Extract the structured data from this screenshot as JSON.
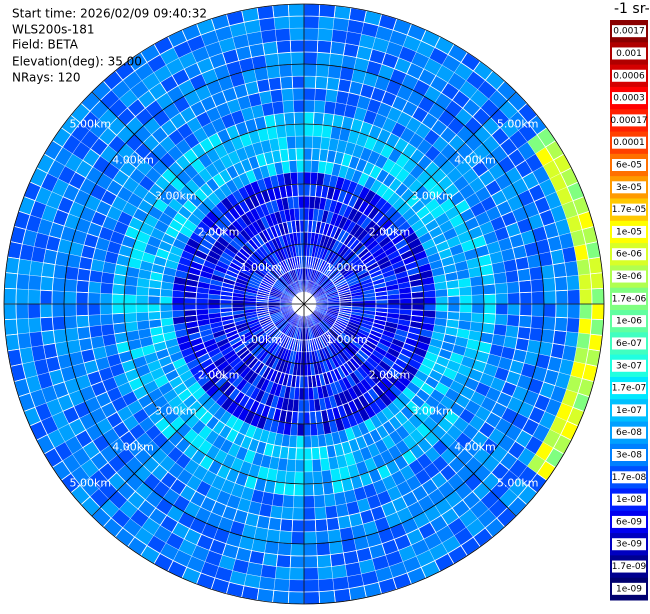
{
  "header": {
    "start_time": "Start time: 2026/02/09 09:40:32",
    "instrument": "WLS200s-181",
    "field": "Field: BETA",
    "elevation": "Elevation(deg): 35.00",
    "nrays": "NRays: 120"
  },
  "ppi": {
    "range_rings": [
      {
        "value": 1,
        "label": "1.00km"
      },
      {
        "value": 2,
        "label": "2.00km"
      },
      {
        "value": 3,
        "label": "3.00km"
      },
      {
        "value": 4,
        "label": "4.00km"
      },
      {
        "value": 5,
        "label": "5.00km"
      }
    ]
  },
  "colorbar": {
    "title": "-1 sr-",
    "ticks": [
      {
        "value": 0.0017,
        "label": "0.0017"
      },
      {
        "value": 0.001,
        "label": "0.001"
      },
      {
        "value": 0.0006,
        "label": "0.0006"
      },
      {
        "value": 0.0003,
        "label": "0.0003"
      },
      {
        "value": 0.00017,
        "label": "0.00017"
      },
      {
        "value": 0.0001,
        "label": "0.0001"
      },
      {
        "value": 6e-05,
        "label": "6e-05"
      },
      {
        "value": 3e-05,
        "label": "3e-05"
      },
      {
        "value": 1.7e-05,
        "label": "1.7e-05"
      },
      {
        "value": 1e-05,
        "label": "1e-05"
      },
      {
        "value": 6e-06,
        "label": "6e-06"
      },
      {
        "value": 3e-06,
        "label": "3e-06"
      },
      {
        "value": 1.7e-06,
        "label": "1.7e-06"
      },
      {
        "value": 1e-06,
        "label": "1e-06"
      },
      {
        "value": 6e-07,
        "label": "6e-07"
      },
      {
        "value": 3e-07,
        "label": "3e-07"
      },
      {
        "value": 1.7e-07,
        "label": "1.7e-07"
      },
      {
        "value": 1e-07,
        "label": "1e-07"
      },
      {
        "value": 6e-08,
        "label": "6e-08"
      },
      {
        "value": 3e-08,
        "label": "3e-08"
      },
      {
        "value": 1.7e-08,
        "label": "1.7e-08"
      },
      {
        "value": 1e-08,
        "label": "1e-08"
      },
      {
        "value": 6e-09,
        "label": "6e-09"
      },
      {
        "value": 3e-09,
        "label": "3e-09"
      },
      {
        "value": 1.7e-09,
        "label": "1.7e-09"
      },
      {
        "value": 1e-09,
        "label": "1e-09"
      }
    ],
    "colors": [
      "#8b0000",
      "#b00000",
      "#d40000",
      "#ff0000",
      "#ff2000",
      "#ff4000",
      "#ff7000",
      "#ff9a00",
      "#ffc800",
      "#ffff00",
      "#d8ff28",
      "#b0ff50",
      "#80ff80",
      "#60ffa0",
      "#40ffc0",
      "#20ffe0",
      "#00e8ff",
      "#00c0ff",
      "#00a0ff",
      "#0080ff",
      "#0050ff",
      "#0020ff",
      "#0000f0",
      "#0000c0",
      "#000090",
      "#000070"
    ]
  }
}
